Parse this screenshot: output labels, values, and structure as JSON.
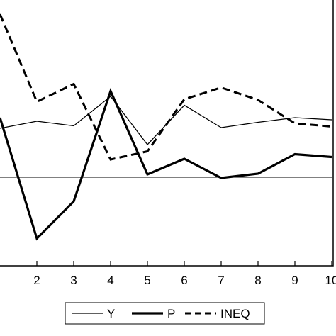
{
  "chart_data": {
    "type": "line",
    "x": [
      1,
      2,
      3,
      4,
      5,
      6,
      7,
      8,
      9,
      10
    ],
    "tick_labels": [
      "2",
      "3",
      "4",
      "5",
      "6",
      "7",
      "8",
      "9",
      "10"
    ],
    "xlim": [
      1,
      10
    ],
    "ylim": [
      -2.5,
      5.0
    ],
    "zero_line": 0,
    "grid": false,
    "legend_position": "bottom",
    "series": [
      {
        "name": "Y",
        "style": "thin-solid",
        "color": "#000000",
        "values": [
          1.38,
          1.58,
          1.45,
          2.28,
          0.92,
          2.03,
          1.4,
          1.55,
          1.68,
          1.62
        ]
      },
      {
        "name": "P",
        "style": "thick-solid",
        "color": "#000000",
        "values": [
          1.68,
          -1.73,
          -0.68,
          2.43,
          0.08,
          0.52,
          -0.02,
          0.1,
          0.65,
          0.57
        ]
      },
      {
        "name": "INEQ",
        "style": "thick-dashed",
        "color": "#000000",
        "values": [
          4.6,
          2.13,
          2.63,
          0.5,
          0.73,
          2.2,
          2.53,
          2.18,
          1.52,
          1.43
        ]
      }
    ]
  }
}
